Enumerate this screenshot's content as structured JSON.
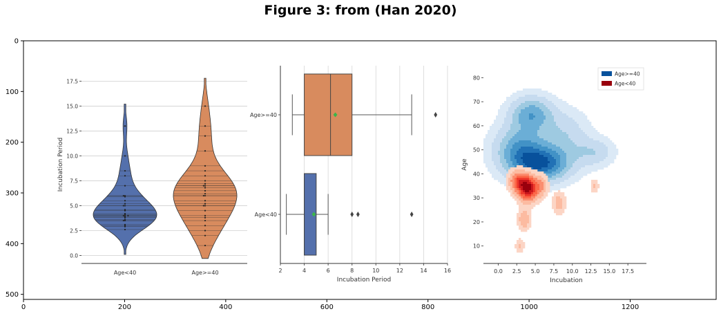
{
  "figure": {
    "title": "Figure 3: from (Han 2020)"
  },
  "outer_axes": {
    "x_ticks": [
      0,
      200,
      400,
      600,
      800,
      1000,
      1200
    ],
    "y_ticks": [
      0,
      100,
      200,
      300,
      400,
      500
    ],
    "xlim": [
      0,
      1370
    ],
    "ylim": [
      510,
      0
    ]
  },
  "chart_data": [
    {
      "type": "violin",
      "ylabel": "Incubation Period",
      "ylim": [
        -0.8,
        18.5
      ],
      "y_ticks": [
        "0.0",
        "2.5",
        "5.0",
        "7.5",
        "10.0",
        "12.5",
        "15.0",
        "17.5"
      ],
      "categories": [
        "Age<40",
        "Age>=40"
      ],
      "colors": [
        "#5470ac",
        "#d88b5e"
      ],
      "series": [
        {
          "name": "Age<40",
          "range": [
            0.1,
            15.2
          ],
          "points": [
            2.6,
            2.9,
            3.0,
            3.1,
            3.5,
            3.5,
            3.6,
            3.8,
            3.9,
            4.0,
            4.0,
            4.0,
            4.1,
            4.2,
            4.5,
            4.6,
            5.0,
            5.0,
            5.2,
            5.5,
            5.9,
            6.0,
            6.0,
            7.0,
            8.0,
            8.5,
            10.0,
            13.0
          ]
        },
        {
          "name": "Age>=40",
          "range": [
            -0.3,
            17.8
          ],
          "points": [
            1.0,
            2.0,
            2.5,
            3.0,
            3.5,
            3.8,
            4.0,
            4.5,
            5.0,
            5.0,
            5.2,
            5.5,
            6.0,
            6.0,
            6.2,
            6.5,
            6.8,
            7.0,
            7.0,
            7.2,
            7.5,
            8.0,
            8.5,
            9.0,
            10.5,
            12.0,
            13.0,
            15.0
          ]
        }
      ]
    },
    {
      "type": "box",
      "xlabel": "Incubation Period",
      "xlim": [
        2,
        16
      ],
      "x_ticks": [
        "2",
        "4",
        "6",
        "8",
        "10",
        "12",
        "14",
        "16"
      ],
      "categories": [
        "Age>=40",
        "Age<40"
      ],
      "boxes": [
        {
          "name": "Age>=40",
          "color": "#d88b5e",
          "whislo": 3.0,
          "q1": 4.0,
          "median": 6.2,
          "q3": 8.0,
          "whishi": 13.0,
          "mean": 6.6,
          "fliers": [
            15.0
          ]
        },
        {
          "name": "Age<40",
          "color": "#5470ac",
          "whislo": 2.5,
          "q1": 4.0,
          "median": 4.0,
          "q3": 5.0,
          "whishi": 6.0,
          "mean": 4.8,
          "fliers": [
            8.0,
            8.5,
            13.0
          ]
        }
      ]
    },
    {
      "type": "kde2d",
      "xlabel": "Incubation",
      "ylabel": "Age",
      "xlim": [
        -2,
        20
      ],
      "ylim": [
        3,
        85
      ],
      "x_ticks": [
        "0.0",
        "2.5",
        "5.0",
        "7.5",
        "10.0",
        "12.5",
        "15.0",
        "17.5"
      ],
      "y_ticks": [
        "10",
        "20",
        "30",
        "40",
        "50",
        "60",
        "70",
        "80"
      ],
      "legend": {
        "placement": "top-right",
        "entries": [
          "Age>=40",
          "Age<40"
        ]
      },
      "series": [
        {
          "name": "Age>=40",
          "palette": [
            "#dbe9f6",
            "#c6dbef",
            "#9ecae1",
            "#6baed6",
            "#4292c6",
            "#2171b5",
            "#08519c"
          ],
          "kernels": [
            {
              "x": 6.0,
              "y": 44,
              "sx": 2.6,
              "sy": 5,
              "w": 1.0
            },
            {
              "x": 3.0,
              "y": 50,
              "sx": 2.4,
              "sy": 7,
              "w": 0.75
            },
            {
              "x": 4.5,
              "y": 65,
              "sx": 2.0,
              "sy": 5,
              "w": 0.7
            },
            {
              "x": 9.0,
              "y": 56,
              "sx": 2.2,
              "sy": 7,
              "w": 0.35
            },
            {
              "x": 13.0,
              "y": 49,
              "sx": 1.8,
              "sy": 4,
              "w": 0.35
            }
          ]
        },
        {
          "name": "Age<40",
          "palette": [
            "#fcd5c5",
            "#fcbba1",
            "#fb8d6f",
            "#fb6a4a",
            "#ef3b2c",
            "#cb181d",
            "#99000d"
          ],
          "kernels": [
            {
              "x": 4.0,
              "y": 34,
              "sx": 0.9,
              "sy": 3.5,
              "w": 1.0
            },
            {
              "x": 2.6,
              "y": 37,
              "sx": 0.8,
              "sy": 3.0,
              "w": 0.5
            },
            {
              "x": 5.8,
              "y": 35,
              "sx": 0.6,
              "sy": 3.0,
              "w": 0.3
            },
            {
              "x": 3.5,
              "y": 21,
              "sx": 0.6,
              "sy": 3.0,
              "w": 0.3
            },
            {
              "x": 8.2,
              "y": 28,
              "sx": 0.6,
              "sy": 3.0,
              "w": 0.25
            },
            {
              "x": 2.9,
              "y": 10,
              "sx": 0.4,
              "sy": 2.0,
              "w": 0.2
            },
            {
              "x": 13.0,
              "y": 35,
              "sx": 0.4,
              "sy": 2.0,
              "w": 0.18
            }
          ]
        }
      ]
    }
  ]
}
